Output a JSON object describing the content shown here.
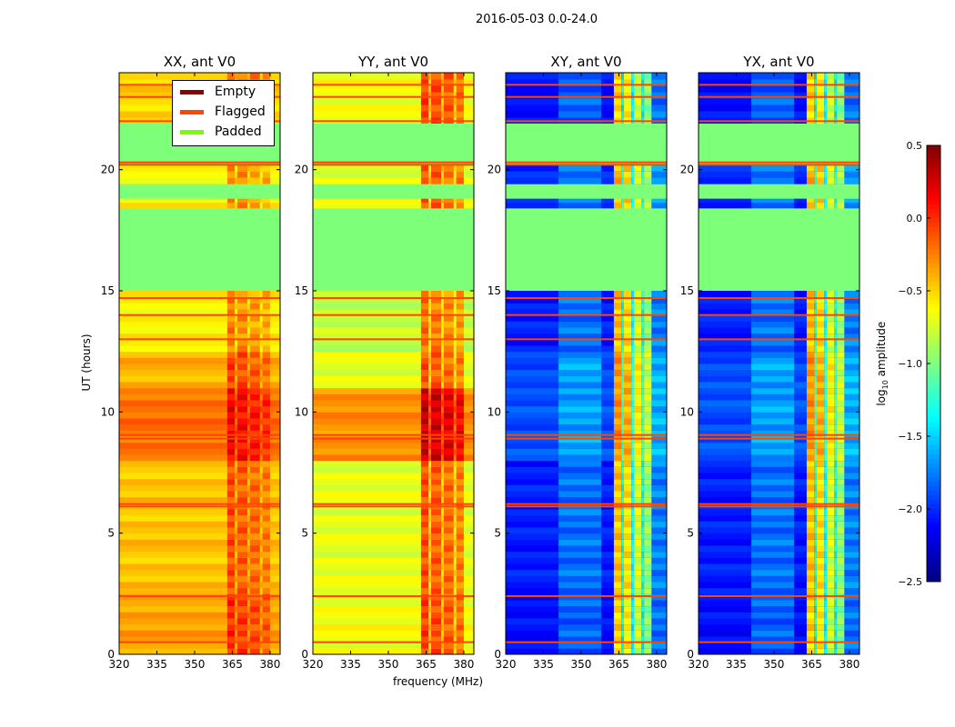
{
  "chart_data": {
    "type": "heatmap",
    "title": "2016-05-03 0.0-24.0",
    "xlabel": "frequency (MHz)",
    "ylabel": "UT (hours)",
    "xlim": [
      320,
      384
    ],
    "ylim": [
      0,
      24
    ],
    "xticks": [
      320,
      335,
      350,
      365,
      380
    ],
    "yticks": [
      0,
      5,
      10,
      15,
      20
    ],
    "colormap": "jet",
    "colorbar": {
      "label": "log10 amplitude",
      "label_main": "log",
      "label_sub": "10",
      "label_rest": " amplitude",
      "range": [
        -2.5,
        0.5
      ],
      "ticks": [
        "0.5",
        "0.0",
        "−0.5",
        "−1.0",
        "−1.5",
        "−2.0",
        "−2.5"
      ],
      "tick_values": [
        0.5,
        0.0,
        -0.5,
        -1.0,
        -1.5,
        -2.0,
        -2.5
      ]
    },
    "legend": {
      "placement": "upper-right of first panel",
      "entries": [
        {
          "label": "Empty",
          "color": "#8b0000"
        },
        {
          "label": "Flagged",
          "color": "#ff4500"
        },
        {
          "label": "Padded",
          "color": "#7cfc00"
        }
      ]
    },
    "padded_ranges_hours": [
      [
        15.0,
        18.4
      ],
      [
        18.8,
        19.4
      ],
      [
        20.4,
        21.3
      ],
      [
        21.5,
        21.9
      ]
    ],
    "flagged_times_hours": [
      0.5,
      2.4,
      6.1,
      6.2,
      8.9,
      9.05,
      13.0,
      14.0,
      14.7,
      20.2,
      20.3,
      22.0,
      23.0,
      23.5
    ],
    "panels": [
      {
        "title": "XX, ant V0",
        "bands": [
          [
            0,
            2.5,
            -0.35
          ],
          [
            2.5,
            8,
            -0.45
          ],
          [
            8,
            11,
            -0.2
          ],
          [
            11,
            12.5,
            -0.4
          ],
          [
            12.5,
            15,
            -0.6
          ],
          [
            18.4,
            20.2,
            -0.6
          ],
          [
            21.9,
            24,
            -0.5
          ]
        ],
        "rfi_columns": [
          [
            363,
            366,
            0.35
          ],
          [
            366,
            367,
            0.1
          ],
          [
            367,
            371,
            0.3
          ],
          [
            371,
            372,
            0.1
          ],
          [
            372,
            376,
            0.25
          ],
          [
            376,
            377,
            0.05
          ],
          [
            377,
            380,
            0.2
          ]
        ]
      },
      {
        "title": "YY, ant V0",
        "bands": [
          [
            0,
            2.5,
            -0.65
          ],
          [
            2.5,
            8,
            -0.7
          ],
          [
            8,
            11,
            -0.3
          ],
          [
            11,
            12.5,
            -0.7
          ],
          [
            12.5,
            15,
            -0.8
          ],
          [
            18.4,
            20.2,
            -0.7
          ],
          [
            21.9,
            24,
            -0.65
          ]
        ],
        "rfi_columns": [
          [
            363,
            366,
            0.6
          ],
          [
            366,
            367,
            0.2
          ],
          [
            367,
            371,
            0.55
          ],
          [
            371,
            372,
            0.2
          ],
          [
            372,
            376,
            0.5
          ],
          [
            376,
            377,
            0.15
          ],
          [
            377,
            380,
            0.45
          ]
        ]
      },
      {
        "title": "XY, ant V0",
        "bands": [
          [
            0,
            2.5,
            -2.1
          ],
          [
            2.5,
            8,
            -2.05
          ],
          [
            8,
            11,
            -1.9
          ],
          [
            11,
            12.5,
            -1.9
          ],
          [
            12.5,
            15,
            -2.05
          ],
          [
            18.4,
            20.2,
            -2.0
          ],
          [
            21.9,
            24,
            -2.1
          ]
        ],
        "rfi_columns": [
          [
            341,
            358,
            0.25
          ],
          [
            363,
            366,
            1.6
          ],
          [
            366,
            367,
            0.7
          ],
          [
            367,
            370,
            1.5
          ],
          [
            370,
            371,
            0.7
          ],
          [
            371,
            374,
            1.3
          ],
          [
            374,
            375,
            0.7
          ],
          [
            375,
            378,
            1.1
          ],
          [
            378,
            384,
            0.3
          ]
        ]
      },
      {
        "title": "YX, ant V0",
        "bands": [
          [
            0,
            2.5,
            -2.1
          ],
          [
            2.5,
            8,
            -2.05
          ],
          [
            8,
            11,
            -1.9
          ],
          [
            11,
            12.5,
            -1.9
          ],
          [
            12.5,
            15,
            -2.05
          ],
          [
            18.4,
            20.2,
            -2.0
          ],
          [
            21.9,
            24,
            -2.1
          ]
        ],
        "rfi_columns": [
          [
            341,
            358,
            0.25
          ],
          [
            363,
            366,
            1.6
          ],
          [
            366,
            367,
            0.7
          ],
          [
            367,
            370,
            1.5
          ],
          [
            370,
            371,
            0.7
          ],
          [
            371,
            374,
            1.3
          ],
          [
            374,
            375,
            0.7
          ],
          [
            375,
            378,
            1.1
          ],
          [
            378,
            384,
            0.3
          ]
        ]
      }
    ]
  }
}
